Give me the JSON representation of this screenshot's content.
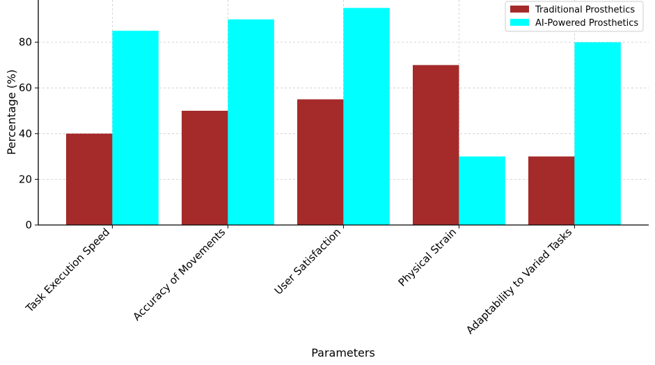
{
  "chart_data": {
    "type": "bar",
    "title": "",
    "xlabel": "Parameters",
    "ylabel": "Percentage (%)",
    "categories": [
      "Task Execution Speed",
      "Accuracy of Movements",
      "User Satisfaction",
      "Physical Strain",
      "Adaptability to Varied Tasks"
    ],
    "series": [
      {
        "name": "Traditional Prosthetics",
        "values": [
          40,
          50,
          55,
          70,
          30
        ],
        "color": "#a52a2a"
      },
      {
        "name": "AI-Powered Prosthetics",
        "values": [
          85,
          90,
          95,
          30,
          80
        ],
        "color": "#00ffff"
      }
    ],
    "yticks": [
      0,
      20,
      40,
      60,
      80
    ],
    "ylim": [
      0,
      100
    ],
    "grid": true,
    "grid_color": "#c8c8c8",
    "legend_position": "top-right"
  }
}
